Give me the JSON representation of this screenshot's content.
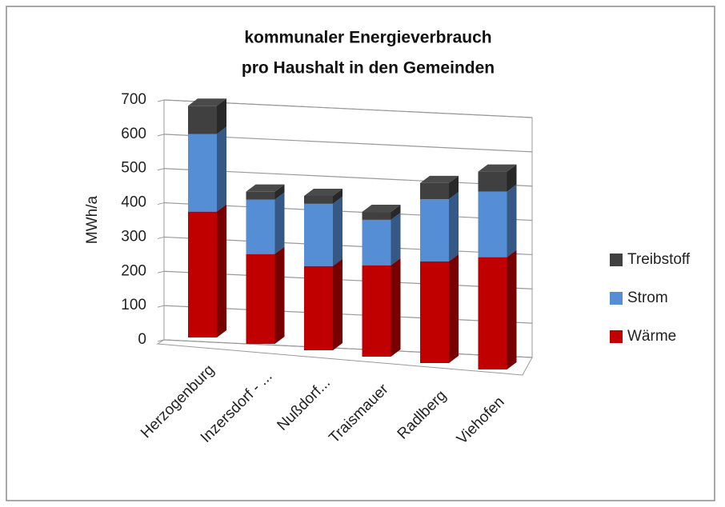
{
  "chart_data": {
    "type": "bar3d_stacked",
    "title": [
      "kommunaler Energieverbrauch",
      "pro Haushalt in den Gemeinden"
    ],
    "y_label": "MWh/a",
    "categories": [
      "Herzogenburg",
      "Inzersdorf - ...",
      "Nußdorf...",
      "Traismauer",
      "Radlberg",
      "Viehofen"
    ],
    "series": [
      {
        "name": "Wärme",
        "color": "#c00000",
        "values": [
          353,
          252,
          236,
          256,
          285,
          315
        ]
      },
      {
        "name": "Strom",
        "color": "#558ed5",
        "values": [
          218,
          153,
          175,
          128,
          175,
          184
        ]
      },
      {
        "name": "Treibstoff",
        "color": "#404040",
        "values": [
          79,
          22,
          22,
          22,
          45,
          56
        ]
      }
    ],
    "ylim": [
      0,
      700
    ],
    "yticks": [
      0,
      100,
      200,
      300,
      400,
      500,
      600,
      700
    ],
    "grid": true,
    "legend": "right"
  }
}
